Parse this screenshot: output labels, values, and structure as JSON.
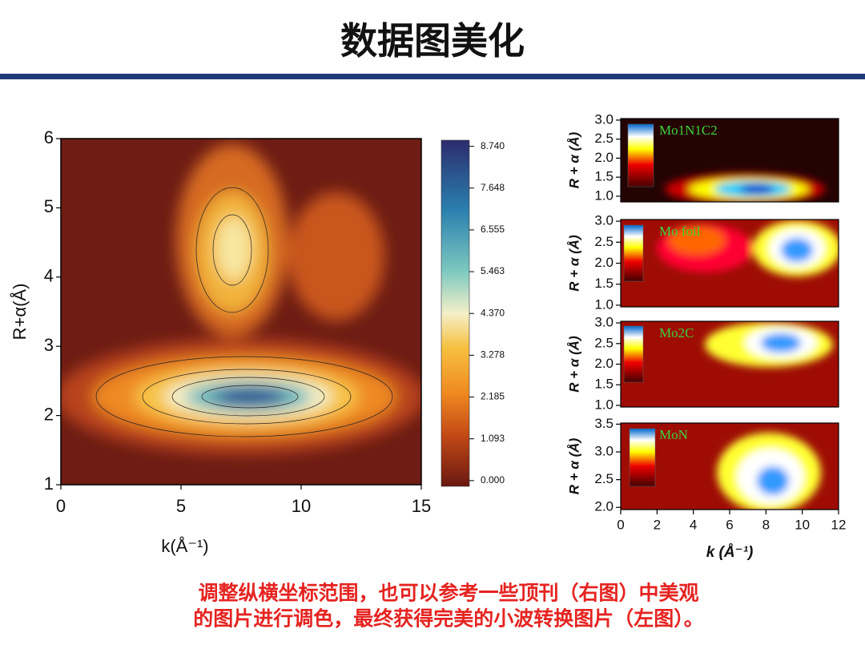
{
  "title": "数据图美化",
  "caption": [
    "调整纵横坐标范围，也可以参考一些顶刊（右图）中美观",
    "的图片进行调色，最终获得完美的小波转换图片（左图）。"
  ],
  "chart_data": [
    {
      "type": "contour",
      "xlabel": "k(Å⁻¹)",
      "ylabel": "R+α(Å)",
      "xlim": [
        0,
        15
      ],
      "ylim": [
        1,
        6
      ],
      "xticks": [
        0,
        5,
        10,
        15
      ],
      "yticks": [
        1,
        2,
        3,
        4,
        5,
        6
      ],
      "colorbar_lim": [
        -0.15,
        8.9
      ],
      "colorbar_ticks": [
        {
          "value": 0,
          "label": "0.000"
        },
        {
          "value": 1.093,
          "label": "1.093"
        },
        {
          "value": 2.185,
          "label": "2.185"
        },
        {
          "value": 3.278,
          "label": "3.278"
        },
        {
          "value": 4.37,
          "label": "4.370"
        },
        {
          "value": 5.463,
          "label": "5.463"
        },
        {
          "value": 6.555,
          "label": "6.555"
        },
        {
          "value": 7.648,
          "label": "7.648"
        },
        {
          "value": 8.74,
          "label": "8.740"
        }
      ]
    },
    {
      "type": "contour",
      "label": "Mo1N1C2",
      "ylabel": "R + α (Å)",
      "xlim": [
        0,
        12
      ],
      "ylim": [
        0.85,
        3.04
      ],
      "yticks": [
        {
          "value": 1,
          "label": "1.0"
        },
        1.5,
        {
          "value": 2,
          "label": "2.0"
        },
        2.5,
        {
          "value": 3,
          "label": "3.0"
        }
      ]
    },
    {
      "type": "contour",
      "label": "Mo foil",
      "ylabel": "R + α (Å)",
      "xlim": [
        0,
        12
      ],
      "ylim": [
        0.96,
        3.04
      ],
      "yticks": [
        {
          "value": 1,
          "label": "1.0"
        },
        1.5,
        {
          "value": 2,
          "label": "2.0"
        },
        2.5,
        {
          "value": 3,
          "label": "3.0"
        }
      ]
    },
    {
      "type": "contour",
      "label": "Mo2C",
      "ylabel": "R + α (Å)",
      "xlim": [
        0,
        12
      ],
      "ylim": [
        0.96,
        3.04
      ],
      "yticks": [
        {
          "value": 1,
          "label": "1.0"
        },
        1.5,
        {
          "value": 2,
          "label": "2.0"
        },
        2.5,
        {
          "value": 3,
          "label": "3.0"
        }
      ]
    },
    {
      "type": "contour",
      "label": "MoN",
      "xlabel": "k (Å⁻¹)",
      "ylabel": "R + α (Å)",
      "xlim": [
        0,
        12
      ],
      "ylim": [
        1.96,
        3.52
      ],
      "xticks": [
        0,
        2,
        4,
        6,
        8,
        10,
        12
      ],
      "yticks": [
        {
          "value": 2,
          "label": "2.0"
        },
        2.5,
        {
          "value": 3,
          "label": "3.0"
        },
        3.5
      ]
    }
  ]
}
